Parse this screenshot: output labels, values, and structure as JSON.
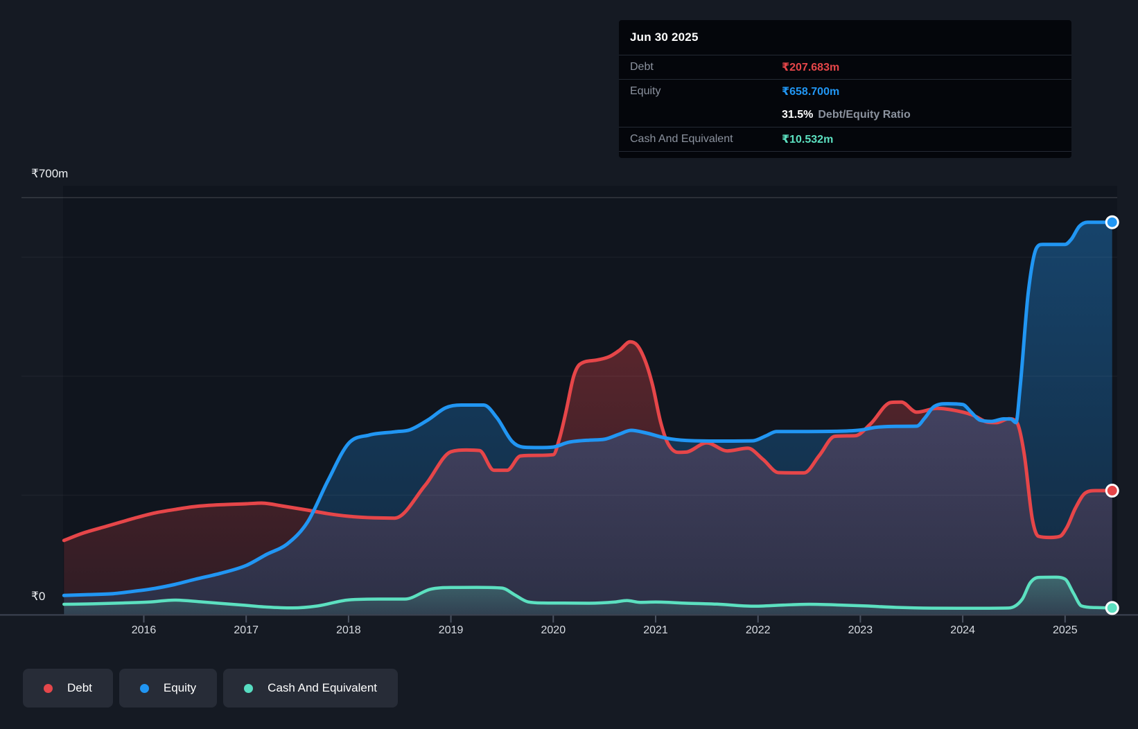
{
  "y_axis": {
    "max_label": "₹700m",
    "zero_label": "₹0"
  },
  "x_axis": {
    "years": [
      "2016",
      "2017",
      "2018",
      "2019",
      "2020",
      "2021",
      "2022",
      "2023",
      "2024",
      "2025"
    ]
  },
  "tooltip": {
    "date": "Jun 30 2025",
    "rows": [
      {
        "label": "Debt",
        "value": "₹207.683m",
        "color": "#e64649"
      },
      {
        "label": "Equity",
        "value": "₹658.700m",
        "color": "#2196f3"
      }
    ],
    "ratio_value": "31.5%",
    "ratio_label": "Debt/Equity Ratio",
    "cash_row": {
      "label": "Cash And Equivalent",
      "value": "₹10.532m",
      "color": "#5ce0c0"
    }
  },
  "legend": [
    {
      "label": "Debt",
      "color": "#e5474b"
    },
    {
      "label": "Equity",
      "color": "#2095f2"
    },
    {
      "label": "Cash And Equivalent",
      "color": "#57ddc1"
    }
  ],
  "chart_data": {
    "type": "area",
    "unit": "₹m",
    "ylim": [
      0,
      700
    ],
    "xlim": [
      2015.22,
      2025.5
    ],
    "y_top_line_value": 700,
    "gridline_values": [
      600,
      400,
      200
    ],
    "x_ticks": [
      2016,
      2017,
      2018,
      2019,
      2020,
      2021,
      2022,
      2023,
      2024,
      2025
    ],
    "legend_position": "bottom-left",
    "series": [
      {
        "name": "Debt",
        "color": "#e64649",
        "end_value": 207.683,
        "points": [
          [
            2015.22,
            124
          ],
          [
            2015.4,
            136
          ],
          [
            2015.66,
            149
          ],
          [
            2015.9,
            161
          ],
          [
            2016.1,
            170
          ],
          [
            2016.3,
            176
          ],
          [
            2016.5,
            181
          ],
          [
            2016.75,
            184
          ],
          [
            2017.0,
            185.6
          ],
          [
            2017.15,
            186.8
          ],
          [
            2017.35,
            182
          ],
          [
            2017.6,
            175
          ],
          [
            2017.8,
            169
          ],
          [
            2018.0,
            164.6
          ],
          [
            2018.25,
            162
          ],
          [
            2018.45,
            161.5
          ],
          [
            2018.75,
            217
          ],
          [
            2019.0,
            273
          ],
          [
            2019.15,
            276
          ],
          [
            2019.28,
            275
          ],
          [
            2019.42,
            242
          ],
          [
            2019.55,
            242
          ],
          [
            2019.68,
            266
          ],
          [
            2019.85,
            267
          ],
          [
            2020.0,
            268
          ],
          [
            2020.06,
            295
          ],
          [
            2020.12,
            337
          ],
          [
            2020.2,
            400
          ],
          [
            2020.26,
            420
          ],
          [
            2020.42,
            427
          ],
          [
            2020.55,
            433
          ],
          [
            2020.65,
            444
          ],
          [
            2020.75,
            457.7
          ],
          [
            2020.82,
            452
          ],
          [
            2020.9,
            425
          ],
          [
            2020.97,
            385
          ],
          [
            2021.05,
            322
          ],
          [
            2021.12,
            287
          ],
          [
            2021.22,
            272
          ],
          [
            2021.3,
            272.5
          ],
          [
            2021.5,
            288
          ],
          [
            2021.7,
            274.5
          ],
          [
            2021.9,
            279
          ],
          [
            2022.05,
            260
          ],
          [
            2022.2,
            238
          ],
          [
            2022.45,
            237.5
          ],
          [
            2022.6,
            267
          ],
          [
            2022.75,
            299
          ],
          [
            2022.95,
            300
          ],
          [
            2023.1,
            320
          ],
          [
            2023.3,
            356
          ],
          [
            2023.4,
            356.5
          ],
          [
            2023.55,
            339.5
          ],
          [
            2023.75,
            346
          ],
          [
            2023.95,
            341.5
          ],
          [
            2024.1,
            334.5
          ],
          [
            2024.25,
            322.5
          ],
          [
            2024.33,
            322
          ],
          [
            2024.45,
            328.5
          ],
          [
            2024.53,
            322
          ],
          [
            2024.6,
            270
          ],
          [
            2024.68,
            160
          ],
          [
            2024.74,
            131
          ],
          [
            2024.85,
            129
          ],
          [
            2024.95,
            131
          ],
          [
            2025.02,
            147
          ],
          [
            2025.1,
            178
          ],
          [
            2025.2,
            204
          ],
          [
            2025.3,
            207.7
          ],
          [
            2025.46,
            207.7
          ]
        ]
      },
      {
        "name": "Equity",
        "color": "#2196f3",
        "end_value": 658.7,
        "points": [
          [
            2015.22,
            31.5
          ],
          [
            2015.45,
            33
          ],
          [
            2015.7,
            34.6
          ],
          [
            2015.9,
            38.5
          ],
          [
            2016.1,
            43.2
          ],
          [
            2016.3,
            50
          ],
          [
            2016.5,
            58.7
          ],
          [
            2016.75,
            68.8
          ],
          [
            2017.0,
            82
          ],
          [
            2017.2,
            100.6
          ],
          [
            2017.4,
            118
          ],
          [
            2017.6,
            155
          ],
          [
            2017.8,
            225
          ],
          [
            2018.0,
            287
          ],
          [
            2018.2,
            301
          ],
          [
            2018.45,
            306.5
          ],
          [
            2018.6,
            310
          ],
          [
            2018.78,
            327
          ],
          [
            2018.95,
            347
          ],
          [
            2019.1,
            351.5
          ],
          [
            2019.32,
            351.5
          ],
          [
            2019.45,
            330
          ],
          [
            2019.6,
            290
          ],
          [
            2019.7,
            281
          ],
          [
            2019.85,
            280
          ],
          [
            2020.0,
            281
          ],
          [
            2020.15,
            289
          ],
          [
            2020.35,
            292.5
          ],
          [
            2020.5,
            294
          ],
          [
            2020.65,
            303
          ],
          [
            2020.76,
            309
          ],
          [
            2020.9,
            305
          ],
          [
            2021.1,
            296
          ],
          [
            2021.3,
            292
          ],
          [
            2021.6,
            291
          ],
          [
            2021.95,
            291.5
          ],
          [
            2022.08,
            300
          ],
          [
            2022.18,
            307
          ],
          [
            2022.5,
            307
          ],
          [
            2022.8,
            307.5
          ],
          [
            2023.0,
            309.5
          ],
          [
            2023.15,
            314
          ],
          [
            2023.35,
            315.8
          ],
          [
            2023.55,
            316
          ],
          [
            2023.63,
            330
          ],
          [
            2023.72,
            349
          ],
          [
            2023.85,
            353.8
          ],
          [
            2024.0,
            352.5
          ],
          [
            2024.08,
            340
          ],
          [
            2024.17,
            326
          ],
          [
            2024.28,
            324
          ],
          [
            2024.4,
            328.3
          ],
          [
            2024.47,
            328
          ],
          [
            2024.52,
            322
          ],
          [
            2024.56,
            380
          ],
          [
            2024.64,
            540
          ],
          [
            2024.72,
            615
          ],
          [
            2024.78,
            621.5
          ],
          [
            2025.0,
            621.5
          ],
          [
            2025.06,
            630
          ],
          [
            2025.14,
            652
          ],
          [
            2025.22,
            658.7
          ],
          [
            2025.46,
            658.7
          ]
        ]
      },
      {
        "name": "Cash And Equivalent",
        "color": "#5ce0c0",
        "end_value": 10.532,
        "points": [
          [
            2015.22,
            16.8
          ],
          [
            2015.5,
            17.5
          ],
          [
            2015.8,
            19
          ],
          [
            2016.05,
            20.5
          ],
          [
            2016.3,
            23.8
          ],
          [
            2016.55,
            21
          ],
          [
            2016.75,
            18.3
          ],
          [
            2016.97,
            15.3
          ],
          [
            2017.2,
            12.1
          ],
          [
            2017.45,
            10.6
          ],
          [
            2017.7,
            14
          ],
          [
            2018.0,
            24.1
          ],
          [
            2018.3,
            25.5
          ],
          [
            2018.55,
            25.5
          ],
          [
            2018.8,
            42
          ],
          [
            2019.0,
            45
          ],
          [
            2019.25,
            45.2
          ],
          [
            2019.5,
            44
          ],
          [
            2019.62,
            33
          ],
          [
            2019.75,
            21
          ],
          [
            2019.9,
            19
          ],
          [
            2020.1,
            18.8
          ],
          [
            2020.35,
            18.5
          ],
          [
            2020.6,
            20.5
          ],
          [
            2020.72,
            23
          ],
          [
            2020.85,
            20
          ],
          [
            2021.0,
            20.5
          ],
          [
            2021.3,
            18.5
          ],
          [
            2021.6,
            17
          ],
          [
            2021.95,
            13.5
          ],
          [
            2022.25,
            15.5
          ],
          [
            2022.5,
            16.8
          ],
          [
            2022.8,
            15.5
          ],
          [
            2023.05,
            14
          ],
          [
            2023.35,
            11.5
          ],
          [
            2023.7,
            10.2
          ],
          [
            2024.1,
            10
          ],
          [
            2024.45,
            10.5
          ],
          [
            2024.58,
            25
          ],
          [
            2024.66,
            53
          ],
          [
            2024.74,
            62
          ],
          [
            2024.9,
            62.3
          ],
          [
            2025.0,
            59
          ],
          [
            2025.08,
            36
          ],
          [
            2025.16,
            14
          ],
          [
            2025.3,
            11.2
          ],
          [
            2025.46,
            10.5
          ]
        ]
      }
    ]
  }
}
